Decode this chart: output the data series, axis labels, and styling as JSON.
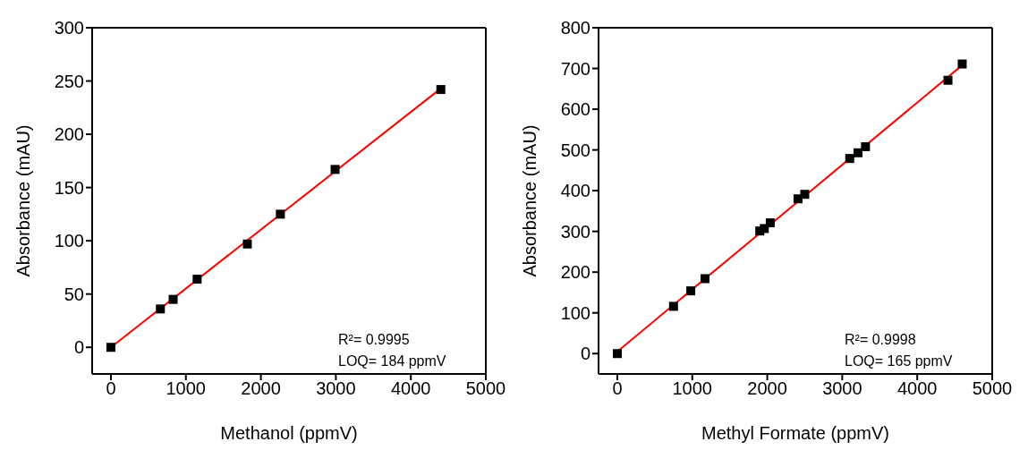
{
  "chart_data": [
    {
      "type": "scatter",
      "xlabel": "Methanol (ppmV)",
      "ylabel": "Absorbance (mAU)",
      "xlim": [
        -250,
        5000
      ],
      "ylim": [
        -25,
        300
      ],
      "xticks": [
        0,
        1000,
        2000,
        3000,
        4000,
        5000
      ],
      "yticks": [
        0,
        50,
        100,
        150,
        200,
        250,
        300
      ],
      "grid": false,
      "legend": false,
      "annotations": [
        "R²= 0.9995",
        "LOQ= 184 ppmV"
      ],
      "series": [
        {
          "marker": "square",
          "color": "#000000",
          "x": [
            0,
            660,
            830,
            1150,
            1820,
            2260,
            2990,
            4400
          ],
          "values": [
            0,
            36,
            45,
            64,
            97,
            125,
            167,
            242
          ]
        },
        {
          "type": "line",
          "marker": "none",
          "color": "#ff0000",
          "x": [
            0,
            4400
          ],
          "values": [
            0,
            243
          ]
        }
      ]
    },
    {
      "type": "scatter",
      "xlabel": "Methyl Formate (ppmV)",
      "ylabel": "Absorbance (mAU)",
      "xlim": [
        -250,
        5000
      ],
      "ylim": [
        -50,
        800
      ],
      "xticks": [
        0,
        1000,
        2000,
        3000,
        4000,
        5000
      ],
      "yticks": [
        0,
        100,
        200,
        300,
        400,
        500,
        600,
        700,
        800
      ],
      "grid": false,
      "legend": false,
      "annotations": [
        "R²= 0.9998",
        "LOQ= 165 ppmV"
      ],
      "series": [
        {
          "marker": "square",
          "color": "#000000",
          "x": [
            0,
            750,
            980,
            1170,
            1900,
            1960,
            2040,
            2410,
            2500,
            3100,
            3210,
            3310,
            4410,
            4600
          ],
          "values": [
            0,
            116,
            154,
            184,
            301,
            307,
            321,
            380,
            391,
            479,
            493,
            508,
            671,
            711
          ]
        },
        {
          "type": "line",
          "marker": "none",
          "color": "#ff0000",
          "x": [
            0,
            4600
          ],
          "values": [
            5,
            708
          ]
        }
      ]
    }
  ]
}
